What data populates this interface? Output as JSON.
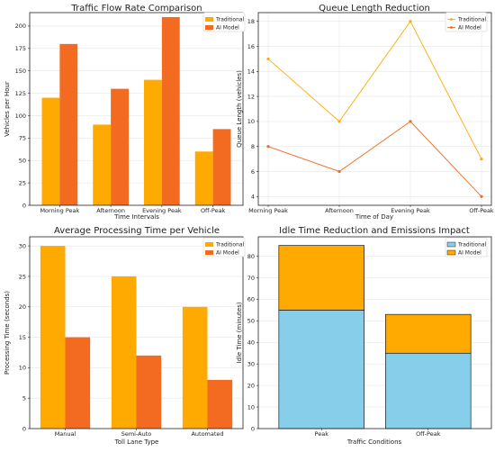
{
  "colors": {
    "traditional": "#FFAA00",
    "ai": "#F26B21",
    "sky": "#87CEEB",
    "grid": "#e6e6e6",
    "axis": "#222222"
  },
  "chart_data": [
    {
      "type": "bar",
      "title": "Traffic Flow Rate Comparison",
      "xlabel": "Time Intervals",
      "ylabel": "Vehicles per Hour",
      "categories": [
        "Morning Peak",
        "Afternoon",
        "Evening Peak",
        "Off-Peak"
      ],
      "series": [
        {
          "name": "Traditional",
          "values": [
            120,
            90,
            140,
            60
          ]
        },
        {
          "name": "AI Model",
          "values": [
            180,
            130,
            210,
            85
          ]
        }
      ],
      "ylim": [
        0,
        215
      ],
      "yticks": [
        "0",
        "25",
        "50",
        "75",
        "100",
        "125",
        "150",
        "175",
        "200"
      ],
      "grid": true,
      "legend": "top-right"
    },
    {
      "type": "line",
      "title": "Queue Length Reduction",
      "xlabel": "Time of Day",
      "ylabel": "Queue Length (vehicles)",
      "categories": [
        "Morning Peak",
        "Afternoon",
        "Evening Peak",
        "Off-Peak"
      ],
      "series": [
        {
          "name": "Traditional",
          "values": [
            15,
            10,
            18,
            7
          ]
        },
        {
          "name": "AI Model",
          "values": [
            8,
            6,
            10,
            4
          ]
        }
      ],
      "ylim": [
        3.3,
        18.7
      ],
      "yticks": [
        "4",
        "6",
        "8",
        "10",
        "12",
        "14",
        "16",
        "18"
      ],
      "grid": true,
      "legend": "top-right"
    },
    {
      "type": "bar",
      "title": "Average Processing Time per Vehicle",
      "xlabel": "Toll Lane Type",
      "ylabel": "Processing Time (seconds)",
      "categories": [
        "Manual",
        "Semi-Auto",
        "Automated"
      ],
      "series": [
        {
          "name": "Traditional",
          "values": [
            30,
            25,
            20
          ]
        },
        {
          "name": "AI Model",
          "values": [
            15,
            12,
            8
          ]
        }
      ],
      "ylim": [
        0,
        31.5
      ],
      "yticks": [
        "0",
        "5",
        "10",
        "15",
        "20",
        "25",
        "30"
      ],
      "grid": true,
      "legend": "top-right"
    },
    {
      "type": "bar",
      "stacked": true,
      "title": "Idle Time Reduction and Emissions Impact",
      "xlabel": "Traffic Conditions",
      "ylabel": "Idle Time (minutes)",
      "categories": [
        "Peak",
        "Off-Peak"
      ],
      "series": [
        {
          "name": "Traditional",
          "values": [
            55,
            35
          ]
        },
        {
          "name": "AI Model",
          "values": [
            30,
            18
          ]
        }
      ],
      "ylim": [
        0,
        89
      ],
      "yticks": [
        "0",
        "10",
        "20",
        "30",
        "40",
        "50",
        "60",
        "70",
        "80"
      ],
      "grid": true,
      "legend": "top-right"
    }
  ]
}
